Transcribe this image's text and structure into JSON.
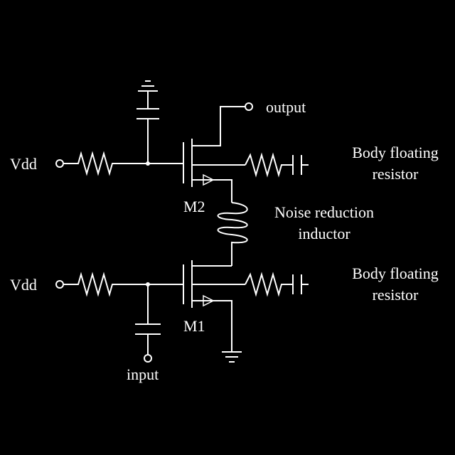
{
  "labels": {
    "vbias_top": "Vdd",
    "vbias_bottom": "Vdd",
    "output": "output",
    "input": "input",
    "m2": "M2",
    "m1": "M1",
    "body_resistor_top_line1": "Body floating",
    "body_resistor_top_line2": "resistor",
    "body_resistor_bottom_line1": "Body floating",
    "body_resistor_bottom_line2": "resistor",
    "inductor_line1": "Noise reduction",
    "inductor_line2": "inductor"
  }
}
